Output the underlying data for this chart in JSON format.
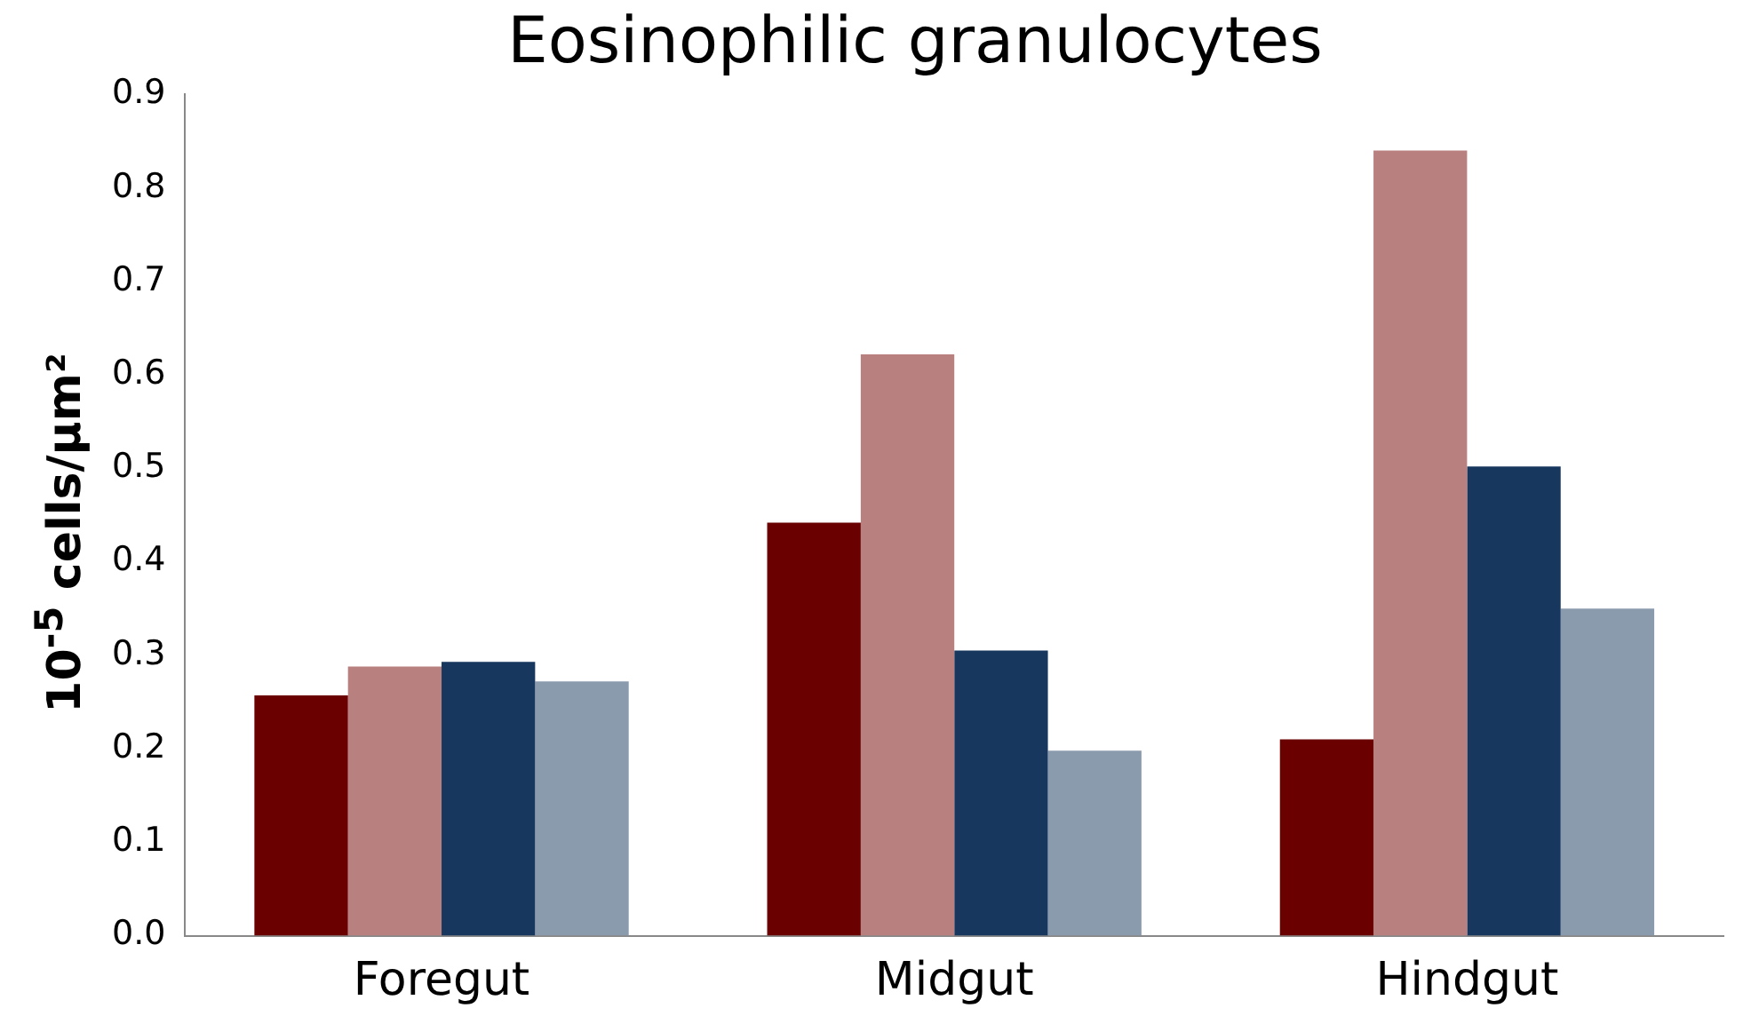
{
  "chart_data": {
    "type": "bar",
    "title": "Eosinophilic granulocytes",
    "ylabel": "10$^{-5}$ cells/μm²",
    "categories": [
      "Foregut",
      "Midgut",
      "Hindgut"
    ],
    "series": [
      {
        "color": "#6b0000",
        "values": [
          0.257,
          0.442,
          0.21
        ]
      },
      {
        "color": "#b98080",
        "values": [
          0.288,
          0.622,
          0.84
        ]
      },
      {
        "color": "#17375e",
        "values": [
          0.293,
          0.305,
          0.502
        ]
      },
      {
        "color": "#8b9bae",
        "values": [
          0.272,
          0.198,
          0.35
        ]
      }
    ],
    "ylim": [
      0,
      0.9
    ],
    "yticks": [
      {
        "value": 0,
        "label": "0.0"
      },
      0.1,
      0.2,
      0.3,
      0.4,
      0.5,
      0.6,
      0.7,
      0.8,
      0.9
    ],
    "grid": false,
    "legend": false
  }
}
